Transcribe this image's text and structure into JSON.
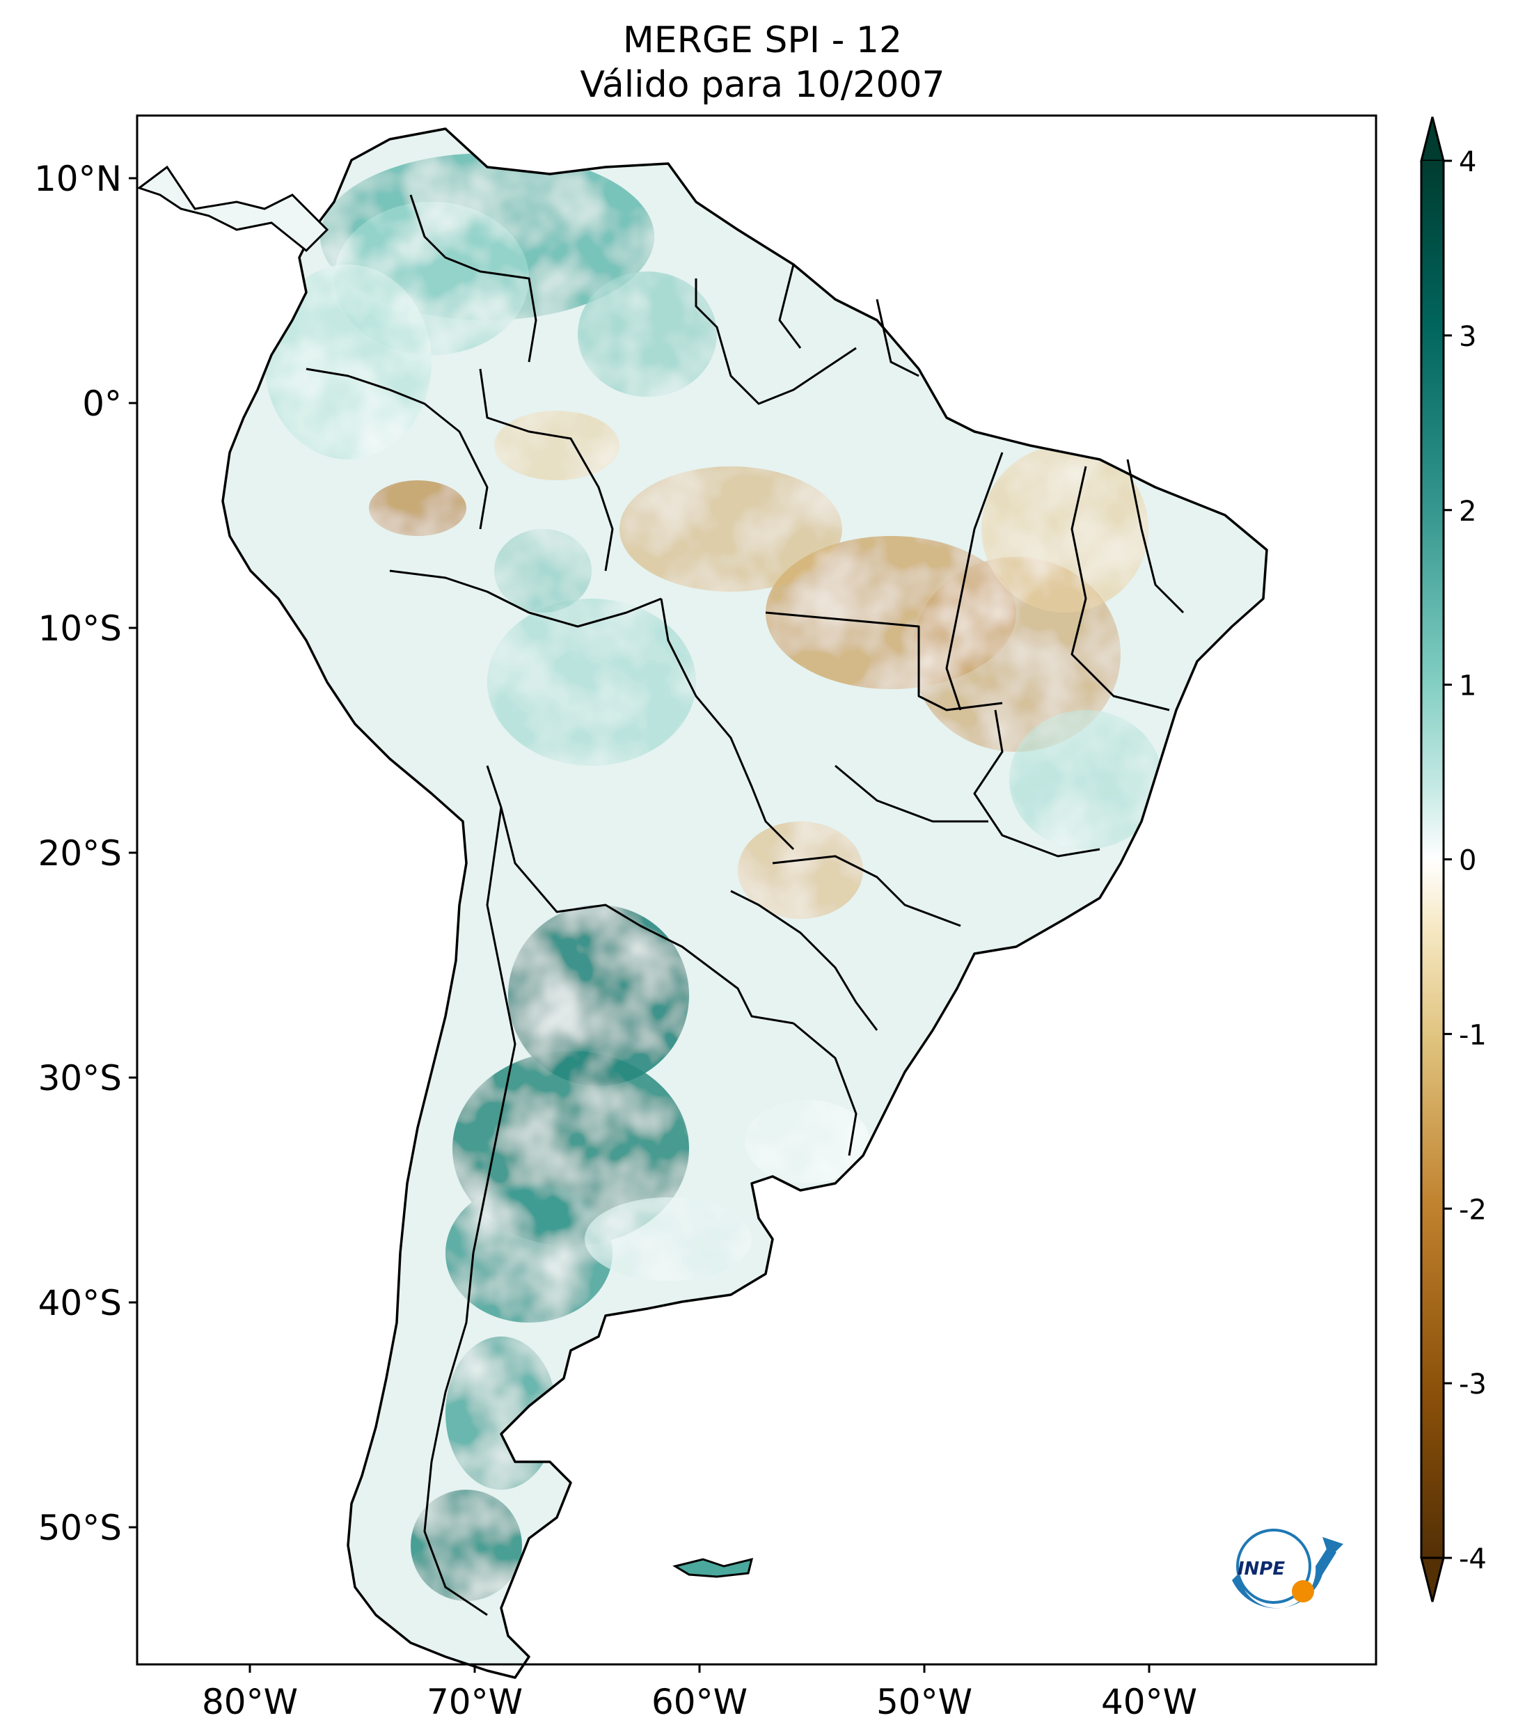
{
  "title": {
    "line1": "MERGE   SPI - 12",
    "line2": "Válido para 10/2007"
  },
  "map": {
    "region": "South America",
    "variable": "SPI - 12",
    "lon_ticks": [
      "80°W",
      "70°W",
      "60°W",
      "50°W",
      "40°W"
    ],
    "lat_ticks": [
      "10°N",
      "0°",
      "10°S",
      "20°S",
      "30°S",
      "40°S",
      "50°S"
    ],
    "lon_range": [
      -85,
      -30
    ],
    "lat_range": [
      -56,
      13
    ]
  },
  "colorbar": {
    "ticks": [
      "4",
      "3",
      "2",
      "1",
      "0",
      "-1",
      "-2",
      "-3",
      "-4"
    ],
    "range": [
      -4,
      4
    ],
    "extend": "both",
    "colormap": "BrBG",
    "colors": {
      "neg4": "#543005",
      "neg3": "#8c510a",
      "neg2": "#bf812d",
      "neg1": "#dfc27d",
      "neg05": "#f6e8c3",
      "zero": "#ffffff",
      "pos05": "#c7eae5",
      "pos1": "#80cdc1",
      "pos2": "#35978f",
      "pos3": "#01665e",
      "pos4": "#003c30"
    }
  },
  "logo": {
    "text": "INPE",
    "icon": "inpe-logo-icon"
  },
  "chart_data": {
    "type": "heatmap",
    "title": "MERGE   SPI - 12",
    "subtitle": "Válido para 10/2007",
    "zrange": [
      -4,
      4
    ]
  }
}
